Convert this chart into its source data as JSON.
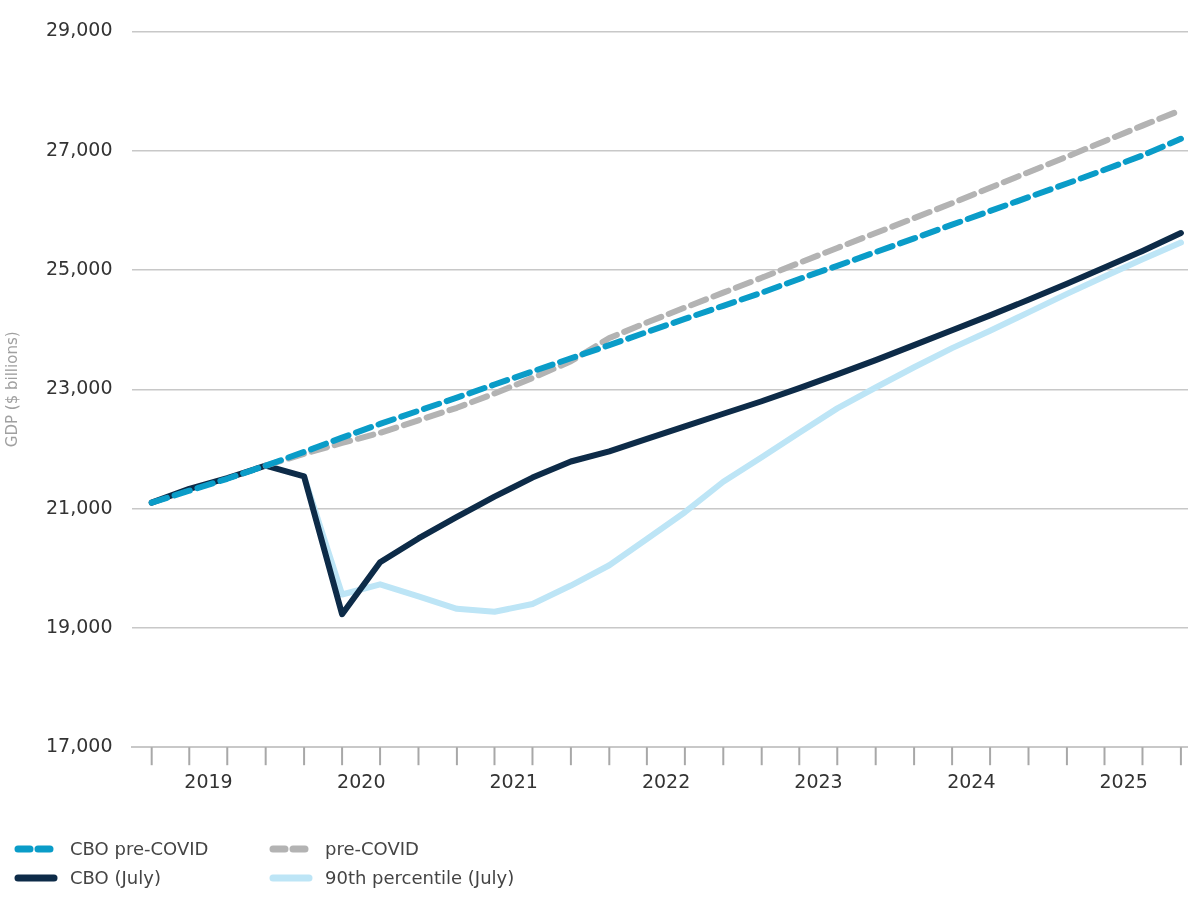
{
  "chart_data": {
    "type": "line",
    "ylabel": "GDP ($ billions)",
    "x": [
      "2019-01-01",
      "2019-04-01",
      "2019-07-01",
      "2019-10-01",
      "2020-01-01",
      "2020-04-01",
      "2020-07-01",
      "2020-10-01",
      "2021-01-01",
      "2021-04-01",
      "2021-07-01",
      "2021-10-01",
      "2022-01-01",
      "2022-04-01",
      "2022-07-01",
      "2022-10-01",
      "2023-01-01",
      "2023-04-01",
      "2023-07-01",
      "2023-10-01",
      "2024-01-01",
      "2024-04-01",
      "2024-07-01",
      "2024-10-01",
      "2025-01-01",
      "2025-04-01",
      "2025-07-01",
      "2025-10-01"
    ],
    "series": [
      {
        "name": "CBO pre-COVID",
        "color": "#0a9cc8",
        "line_style": "dashed",
        "values": [
          21100,
          21300,
          21500,
          21720,
          21950,
          22190,
          22420,
          22640,
          22860,
          23080,
          23300,
          23520,
          23740,
          23960,
          24180,
          24400,
          24620,
          24850,
          25070,
          25300,
          25530,
          25760,
          25990,
          26220,
          26450,
          26680,
          26920,
          27200
        ]
      },
      {
        "name": "pre-COVID",
        "color": "#b3b3b3",
        "line_style": "dashed",
        "values": [
          null,
          null,
          null,
          21720,
          21920,
          22100,
          22270,
          22480,
          22690,
          22930,
          23190,
          23470,
          23860,
          24120,
          24370,
          24620,
          24870,
          25120,
          25370,
          25620,
          25870,
          26120,
          26380,
          26640,
          26900,
          27160,
          27420,
          27680
        ]
      },
      {
        "name": "CBO (July)",
        "color": "#0d2b48",
        "line_style": "solid",
        "values": [
          21100,
          21330,
          21510,
          21720,
          21540,
          19230,
          20100,
          20500,
          20860,
          21200,
          21520,
          21790,
          21960,
          22170,
          22380,
          22590,
          22800,
          23020,
          23250,
          23490,
          23740,
          23990,
          24240,
          24500,
          24770,
          25040,
          25320,
          25620
        ]
      },
      {
        "name": "90th percentile (July)",
        "color": "#bde5f6",
        "line_style": "solid",
        "values": [
          null,
          null,
          null,
          null,
          21540,
          19560,
          19730,
          19530,
          19320,
          19270,
          19400,
          19710,
          20050,
          20490,
          20940,
          21450,
          21860,
          22270,
          22680,
          23030,
          23370,
          23690,
          23980,
          24290,
          24600,
          24890,
          25180,
          25460
        ]
      }
    ],
    "xlim": [
      "2018-11-16",
      "2025-10-18"
    ],
    "xticks": [
      {
        "value": "2019-05-17",
        "label": "2019"
      },
      {
        "value": "2020-05-17",
        "label": "2020"
      },
      {
        "value": "2021-05-17",
        "label": "2021"
      },
      {
        "value": "2022-05-17",
        "label": "2022"
      },
      {
        "value": "2023-05-17",
        "label": "2023"
      },
      {
        "value": "2024-05-17",
        "label": "2024"
      },
      {
        "value": "2025-05-17",
        "label": "2025"
      }
    ],
    "ylim": [
      17000,
      29000
    ],
    "yticks": [
      {
        "value": 17000,
        "label": "17,000"
      },
      {
        "value": 19000,
        "label": "19,000"
      },
      {
        "value": 21000,
        "label": "21,000"
      },
      {
        "value": 23000,
        "label": "23,000"
      },
      {
        "value": 25000,
        "label": "25,000"
      },
      {
        "value": 27000,
        "label": "27,000"
      },
      {
        "value": 29000,
        "label": "29,000"
      }
    ],
    "grid": "y",
    "legend": "bottom left",
    "marker": "none"
  }
}
